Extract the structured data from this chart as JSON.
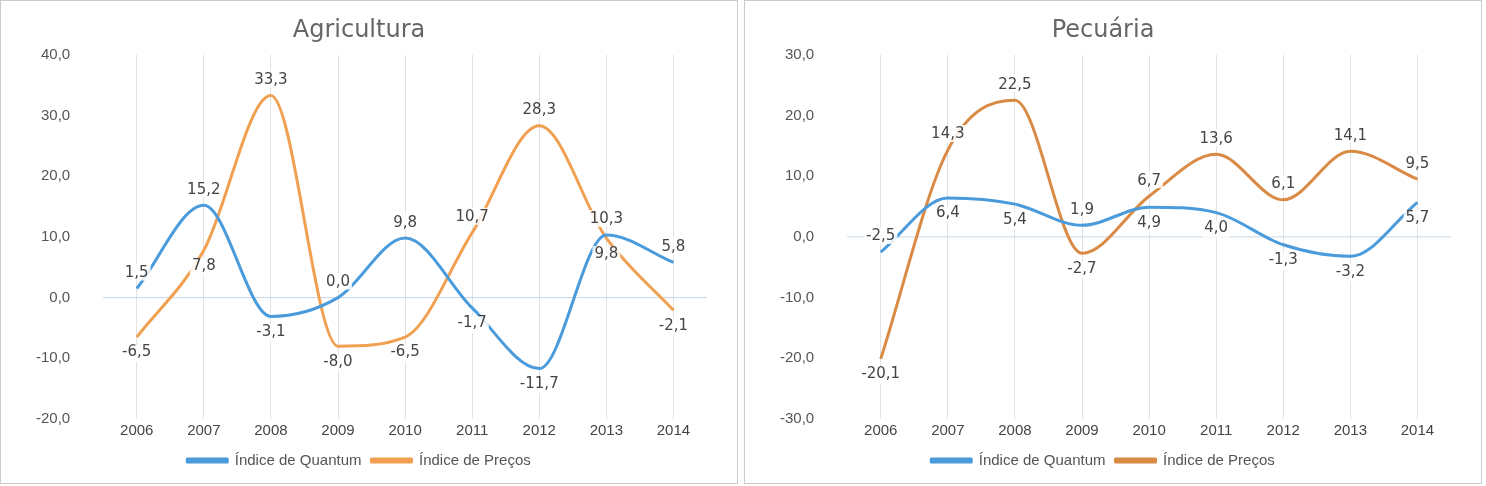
{
  "chart_data": [
    {
      "type": "line",
      "title": "Agricultura",
      "categories": [
        "2006",
        "2007",
        "2008",
        "2009",
        "2010",
        "2011",
        "2012",
        "2013",
        "2014"
      ],
      "series": [
        {
          "name": "Índice de Quantum",
          "color": "#4a9bdc",
          "values": [
            1.5,
            15.2,
            -3.1,
            0.0,
            9.8,
            -1.7,
            -11.7,
            10.3,
            5.8
          ],
          "value_labels": [
            "1,5",
            "15,2",
            "-3,1",
            "0,0",
            "9,8",
            "-1,7",
            "-11,7",
            "10,3",
            "5,8"
          ]
        },
        {
          "name": "Índice de Preços",
          "color": "#f0a050",
          "values": [
            -6.5,
            7.8,
            33.3,
            -8.0,
            -6.5,
            10.7,
            28.3,
            9.8,
            -2.1
          ],
          "value_labels": [
            "-6,5",
            "7,8",
            "33,3",
            "-8,0",
            "-6,5",
            "10,7",
            "28,3",
            "9,8",
            "-2,1"
          ]
        }
      ],
      "ylim": [
        -20,
        40
      ],
      "yticks": [
        {
          "value": -20,
          "label": "-20,0"
        },
        {
          "value": -10,
          "label": "-10,0"
        },
        {
          "value": 0,
          "label": "0,0"
        },
        {
          "value": 10,
          "label": "10,0"
        },
        {
          "value": 20,
          "label": "20,0"
        },
        {
          "value": 30,
          "label": "30,0"
        },
        {
          "value": 40,
          "label": "40,0"
        }
      ],
      "grid": "x",
      "legend": "bottom",
      "line_style": "solid",
      "marker": "none"
    },
    {
      "type": "line",
      "title": "Pecuária",
      "categories": [
        "2006",
        "2007",
        "2008",
        "2009",
        "2010",
        "2011",
        "2012",
        "2013",
        "2014"
      ],
      "series": [
        {
          "name": "Índice de Quantum",
          "color": "#4a9bdc",
          "values": [
            -2.5,
            6.4,
            5.4,
            1.9,
            4.9,
            4.0,
            -1.3,
            -3.2,
            5.7
          ],
          "value_labels": [
            "-2,5",
            "6,4",
            "5,4",
            "1,9",
            "4,9",
            "4,0",
            "-1,3",
            "-3,2",
            "5,7"
          ]
        },
        {
          "name": "Índice de Preços",
          "color": "#d98a45",
          "values": [
            -20.1,
            14.3,
            22.5,
            -2.7,
            6.7,
            13.6,
            6.1,
            14.1,
            9.5
          ],
          "value_labels": [
            "-20,1",
            "14,3",
            "22,5",
            "-2,7",
            "6,7",
            "13,6",
            "6,1",
            "14,1",
            "9,5"
          ]
        }
      ],
      "ylim": [
        -30,
        30
      ],
      "yticks": [
        {
          "value": -30,
          "label": "-30,0"
        },
        {
          "value": -20,
          "label": "-20,0"
        },
        {
          "value": -10,
          "label": "-10,0"
        },
        {
          "value": 0,
          "label": "0,0"
        },
        {
          "value": 10,
          "label": "10,0"
        },
        {
          "value": 20,
          "label": "20,0"
        },
        {
          "value": 30,
          "label": "30,0"
        }
      ],
      "grid": "x",
      "legend": "bottom",
      "line_style": "solid",
      "marker": "none"
    }
  ]
}
